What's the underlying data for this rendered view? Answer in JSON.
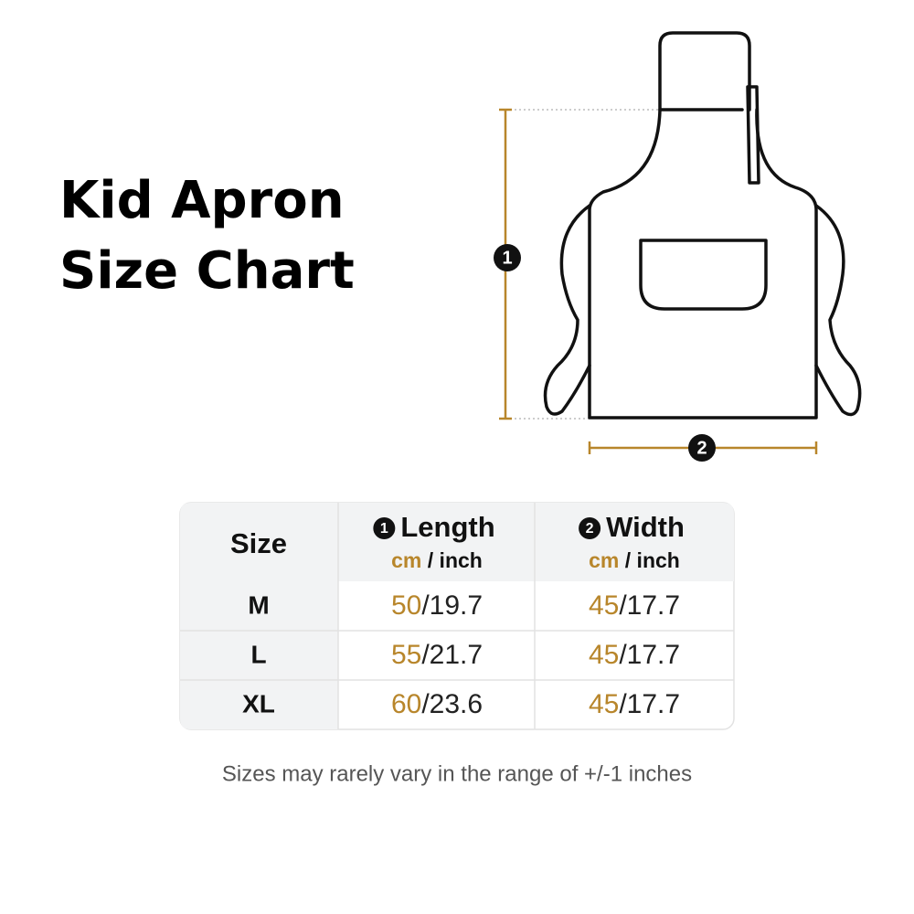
{
  "header": {
    "title_lines": [
      "Kid Apron",
      "Size Chart"
    ]
  },
  "diagram": {
    "markers": [
      "1",
      "2"
    ]
  },
  "table": {
    "header": {
      "size": "Size",
      "columns": [
        {
          "num": "1",
          "name": "Length",
          "units": [
            "cm",
            " / inch"
          ]
        },
        {
          "num": "2",
          "name": "Width",
          "units": [
            "cm",
            " / inch"
          ]
        }
      ]
    },
    "rows": [
      [
        "M",
        [
          "50",
          "/19.7"
        ],
        [
          "45",
          "/17.7"
        ]
      ],
      [
        "L",
        [
          "55",
          "/21.7"
        ],
        [
          "45",
          "/17.7"
        ]
      ],
      [
        "XL",
        [
          "60",
          "/23.6"
        ],
        [
          "45",
          "/17.7"
        ]
      ]
    ]
  },
  "note": "Sizes may rarely vary in the range of +/-1 inches"
}
